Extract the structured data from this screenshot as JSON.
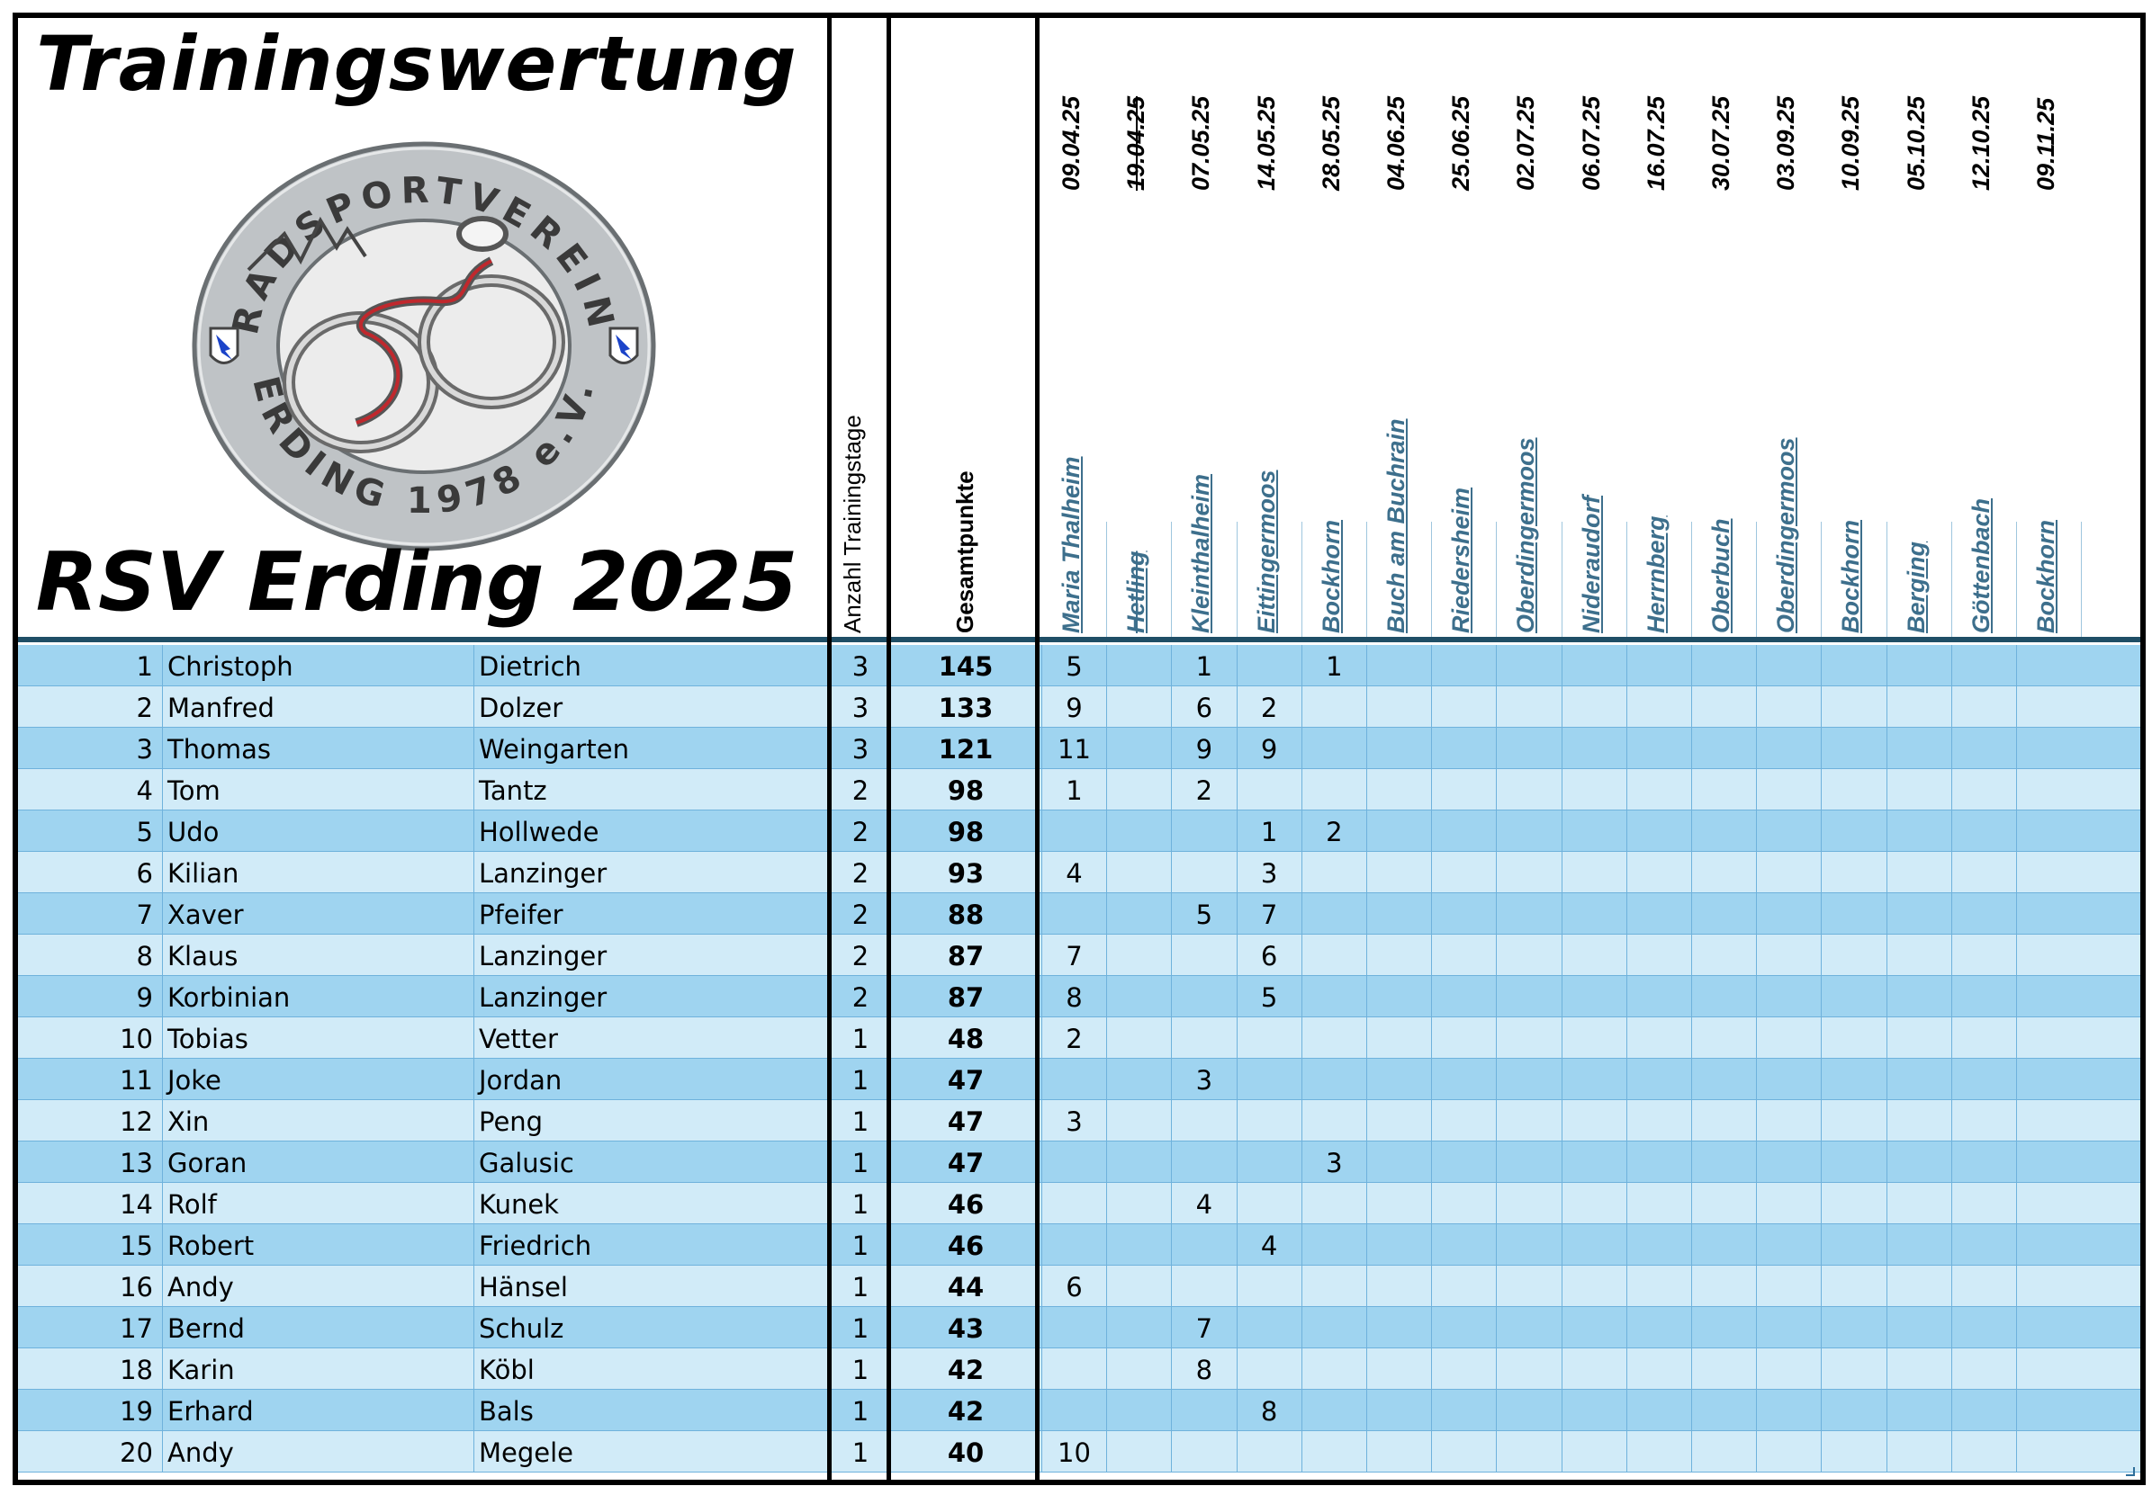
{
  "title": "Trainingswertung",
  "subtitle": "RSV Erding 2025",
  "logo": {
    "arc_top": "RADSPORTVEREIN",
    "arc_bottom": "ERDING 1978 e.V."
  },
  "columns": {
    "count_header": "Anzahl Trainingstage",
    "total_header": "Gesamtpunkte"
  },
  "sessions": [
    {
      "date": "09.04.25",
      "location": "Maria Thalheim",
      "struck": false
    },
    {
      "date": "19.04.25",
      "location": "Hetling",
      "struck": true
    },
    {
      "date": "07.05.25",
      "location": "Kleinthalheim",
      "struck": false
    },
    {
      "date": "14.05.25",
      "location": "Eittingermoos",
      "struck": false
    },
    {
      "date": "28.05.25",
      "location": "Bockhorn",
      "struck": false
    },
    {
      "date": "04.06.25",
      "location": "Buch am Buchrain",
      "struck": false
    },
    {
      "date": "25.06.25",
      "location": "Riedersheim",
      "struck": false
    },
    {
      "date": "02.07.25",
      "location": "Oberdingermoos",
      "struck": false
    },
    {
      "date": "06.07.25",
      "location": "Nideraudorf",
      "struck": false
    },
    {
      "date": "16.07.25",
      "location": "Herrnberg",
      "struck": false
    },
    {
      "date": "30.07.25",
      "location": "Oberbuch",
      "struck": false
    },
    {
      "date": "03.09.25",
      "location": "Oberdingermoos",
      "struck": false
    },
    {
      "date": "10.09.25",
      "location": "Bockhorn",
      "struck": false
    },
    {
      "date": "05.10.25",
      "location": "Berging",
      "struck": false
    },
    {
      "date": "12.10.25",
      "location": "Göttenbach",
      "struck": false
    },
    {
      "date": "09.11.25",
      "location": "Bockhorn",
      "struck": false
    }
  ],
  "rows": [
    {
      "rank": "1",
      "first": "Christoph",
      "last": "Dietrich",
      "days": "3",
      "total": "145",
      "scores": [
        "5",
        "",
        "1",
        "",
        "1",
        "",
        "",
        "",
        "",
        "",
        "",
        "",
        "",
        "",
        "",
        ""
      ]
    },
    {
      "rank": "2",
      "first": "Manfred",
      "last": "Dolzer",
      "days": "3",
      "total": "133",
      "scores": [
        "9",
        "",
        "6",
        "2",
        "",
        "",
        "",
        "",
        "",
        "",
        "",
        "",
        "",
        "",
        "",
        ""
      ]
    },
    {
      "rank": "3",
      "first": "Thomas",
      "last": "Weingarten",
      "days": "3",
      "total": "121",
      "scores": [
        "11",
        "",
        "9",
        "9",
        "",
        "",
        "",
        "",
        "",
        "",
        "",
        "",
        "",
        "",
        "",
        ""
      ]
    },
    {
      "rank": "4",
      "first": "Tom",
      "last": "Tantz",
      "days": "2",
      "total": "98",
      "scores": [
        "1",
        "",
        "2",
        "",
        "",
        "",
        "",
        "",
        "",
        "",
        "",
        "",
        "",
        "",
        "",
        ""
      ]
    },
    {
      "rank": "5",
      "first": "Udo",
      "last": "Hollwede",
      "days": "2",
      "total": "98",
      "scores": [
        "",
        "",
        "",
        "1",
        "2",
        "",
        "",
        "",
        "",
        "",
        "",
        "",
        "",
        "",
        "",
        ""
      ]
    },
    {
      "rank": "6",
      "first": "Kilian",
      "last": "Lanzinger",
      "days": "2",
      "total": "93",
      "scores": [
        "4",
        "",
        "",
        "3",
        "",
        "",
        "",
        "",
        "",
        "",
        "",
        "",
        "",
        "",
        "",
        ""
      ]
    },
    {
      "rank": "7",
      "first": "Xaver",
      "last": "Pfeifer",
      "days": "2",
      "total": "88",
      "scores": [
        "",
        "",
        "5",
        "7",
        "",
        "",
        "",
        "",
        "",
        "",
        "",
        "",
        "",
        "",
        "",
        ""
      ]
    },
    {
      "rank": "8",
      "first": "Klaus",
      "last": "Lanzinger",
      "days": "2",
      "total": "87",
      "scores": [
        "7",
        "",
        "",
        "6",
        "",
        "",
        "",
        "",
        "",
        "",
        "",
        "",
        "",
        "",
        "",
        ""
      ]
    },
    {
      "rank": "9",
      "first": "Korbinian",
      "last": "Lanzinger",
      "days": "2",
      "total": "87",
      "scores": [
        "8",
        "",
        "",
        "5",
        "",
        "",
        "",
        "",
        "",
        "",
        "",
        "",
        "",
        "",
        "",
        ""
      ]
    },
    {
      "rank": "10",
      "first": "Tobias",
      "last": "Vetter",
      "days": "1",
      "total": "48",
      "scores": [
        "2",
        "",
        "",
        "",
        "",
        "",
        "",
        "",
        "",
        "",
        "",
        "",
        "",
        "",
        "",
        ""
      ]
    },
    {
      "rank": "11",
      "first": "Joke",
      "last": "Jordan",
      "days": "1",
      "total": "47",
      "scores": [
        "",
        "",
        "3",
        "",
        "",
        "",
        "",
        "",
        "",
        "",
        "",
        "",
        "",
        "",
        "",
        ""
      ]
    },
    {
      "rank": "12",
      "first": "Xin",
      "last": "Peng",
      "days": "1",
      "total": "47",
      "scores": [
        "3",
        "",
        "",
        "",
        "",
        "",
        "",
        "",
        "",
        "",
        "",
        "",
        "",
        "",
        "",
        ""
      ]
    },
    {
      "rank": "13",
      "first": "Goran",
      "last": "Galusic",
      "days": "1",
      "total": "47",
      "scores": [
        "",
        "",
        "",
        "",
        "3",
        "",
        "",
        "",
        "",
        "",
        "",
        "",
        "",
        "",
        "",
        ""
      ]
    },
    {
      "rank": "14",
      "first": "Rolf",
      "last": "Kunek",
      "days": "1",
      "total": "46",
      "scores": [
        "",
        "",
        "4",
        "",
        "",
        "",
        "",
        "",
        "",
        "",
        "",
        "",
        "",
        "",
        "",
        ""
      ]
    },
    {
      "rank": "15",
      "first": "Robert",
      "last": "Friedrich",
      "days": "1",
      "total": "46",
      "scores": [
        "",
        "",
        "",
        "4",
        "",
        "",
        "",
        "",
        "",
        "",
        "",
        "",
        "",
        "",
        "",
        ""
      ]
    },
    {
      "rank": "16",
      "first": "Andy",
      "last": "Hänsel",
      "days": "1",
      "total": "44",
      "scores": [
        "6",
        "",
        "",
        "",
        "",
        "",
        "",
        "",
        "",
        "",
        "",
        "",
        "",
        "",
        "",
        ""
      ]
    },
    {
      "rank": "17",
      "first": "Bernd",
      "last": "Schulz",
      "days": "1",
      "total": "43",
      "scores": [
        "",
        "",
        "7",
        "",
        "",
        "",
        "",
        "",
        "",
        "",
        "",
        "",
        "",
        "",
        "",
        ""
      ]
    },
    {
      "rank": "18",
      "first": "Karin",
      "last": "Köbl",
      "days": "1",
      "total": "42",
      "scores": [
        "",
        "",
        "8",
        "",
        "",
        "",
        "",
        "",
        "",
        "",
        "",
        "",
        "",
        "",
        "",
        ""
      ]
    },
    {
      "rank": "19",
      "first": "Erhard",
      "last": "Bals",
      "days": "1",
      "total": "42",
      "scores": [
        "",
        "",
        "",
        "8",
        "",
        "",
        "",
        "",
        "",
        "",
        "",
        "",
        "",
        "",
        "",
        ""
      ]
    },
    {
      "rank": "20",
      "first": "Andy",
      "last": "Megele",
      "days": "1",
      "total": "40",
      "scores": [
        "10",
        "",
        "",
        "",
        "",
        "",
        "",
        "",
        "",
        "",
        "",
        "",
        "",
        "",
        "",
        ""
      ]
    }
  ],
  "colors": {
    "row_odd": "#9fd4f0",
    "row_even": "#d1ebf8",
    "location_link": "#3d6f8c"
  }
}
